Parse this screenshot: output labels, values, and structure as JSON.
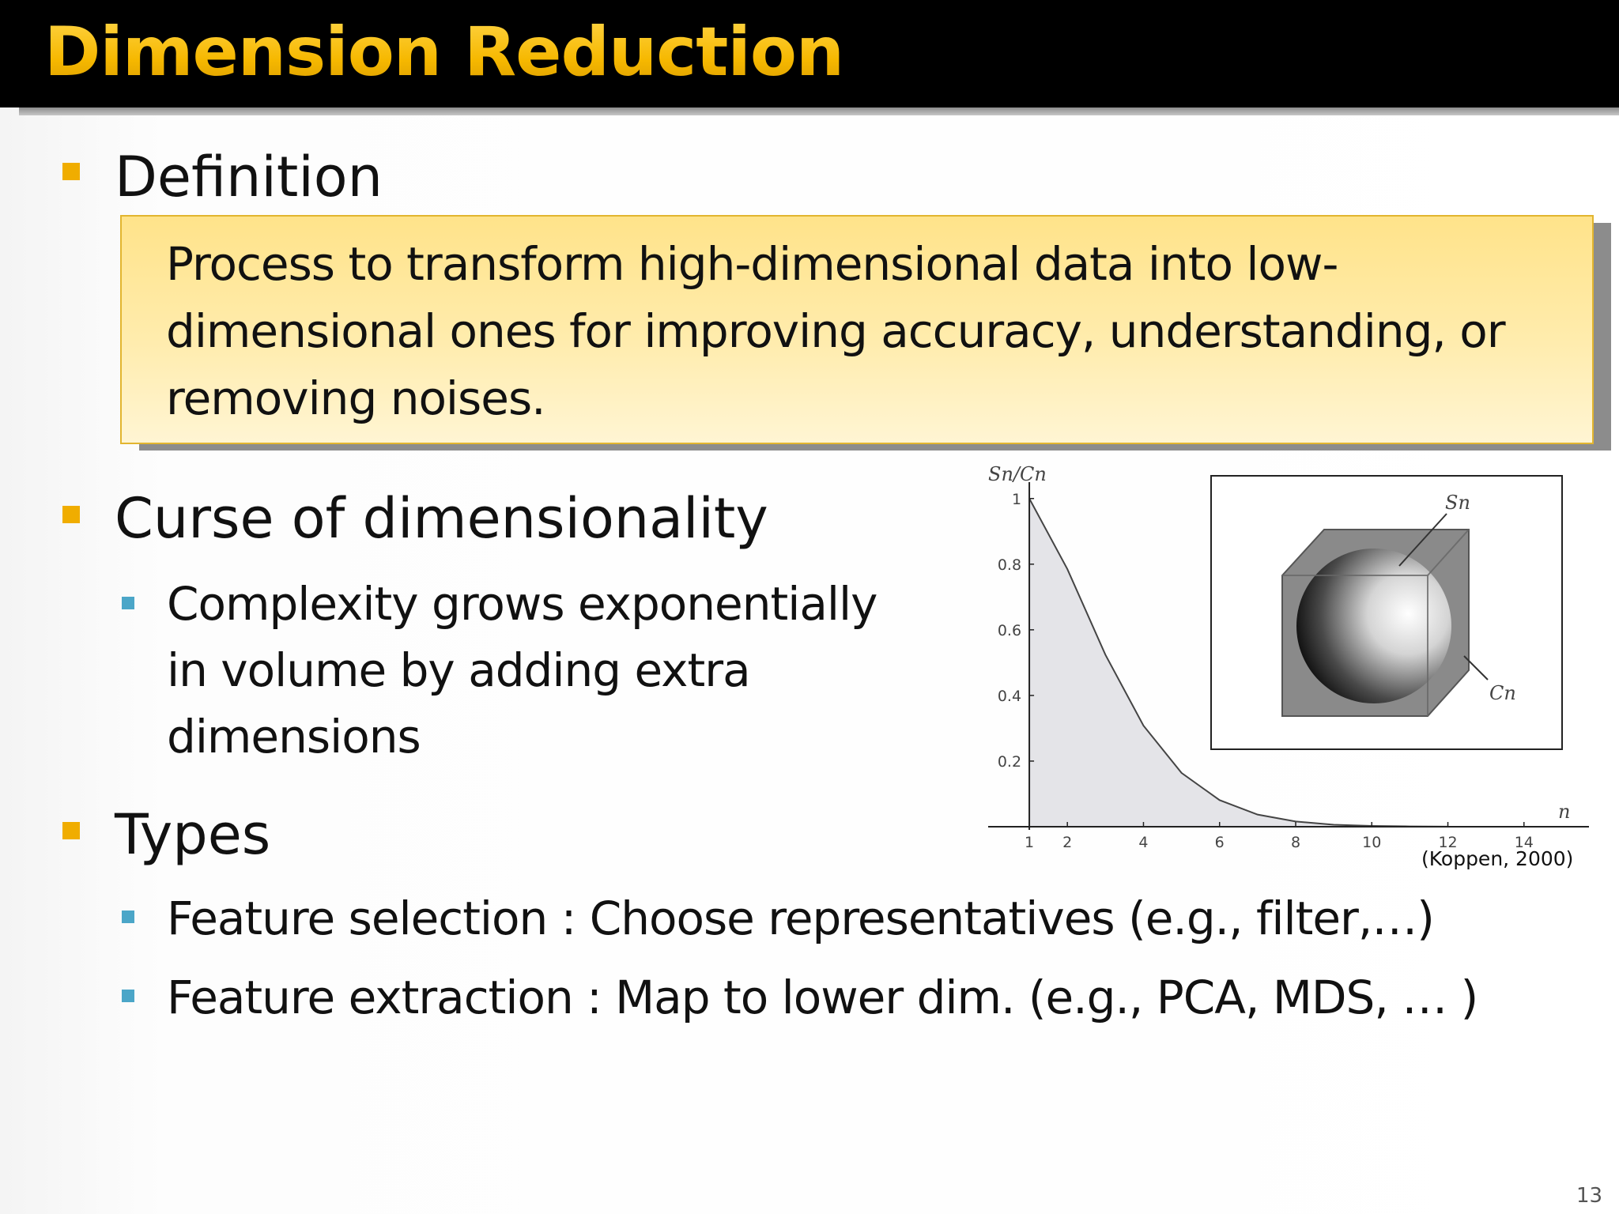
{
  "slide": {
    "title": "Dimension Reduction",
    "page_number": "13"
  },
  "sections": {
    "definition": {
      "heading": "Definition",
      "box_text": "Process to transform high-dimensional data into low-dimensional ones for improving accuracy, understanding, or removing noises."
    },
    "curse": {
      "heading": "Curse of dimensionality",
      "bullet": "Complexity grows exponentially in volume by adding extra dimensions"
    },
    "types": {
      "heading": "Types",
      "bullets": [
        "Feature selection : Choose representatives (e.g., filter,…)",
        "Feature extraction : Map to lower dim. (e.g., PCA, MDS, … )"
      ]
    }
  },
  "figure": {
    "citation": "(Koppen, 2000)",
    "inset_labels": {
      "sphere": "Sn",
      "cube": "Cn"
    }
  },
  "chart_data": {
    "type": "area",
    "ylabel": "Sn/Cn",
    "xlabel": "n",
    "x_ticks": [
      "1",
      "2",
      "4",
      "6",
      "8",
      "10",
      "12",
      "14"
    ],
    "y_ticks": [
      "0.2",
      "0.4",
      "0.6",
      "0.8",
      "1"
    ],
    "xlim": [
      0.5,
      15.5
    ],
    "ylim": [
      0,
      1.05
    ],
    "x": [
      1,
      2,
      3,
      4,
      5,
      6,
      7,
      8,
      9,
      10,
      11,
      12
    ],
    "values": [
      1.0,
      0.785,
      0.524,
      0.308,
      0.164,
      0.081,
      0.037,
      0.016,
      0.006,
      0.0025,
      0.001,
      0.0003
    ],
    "colors": {
      "fill": "#e4e4e8",
      "line": "#444444"
    }
  }
}
